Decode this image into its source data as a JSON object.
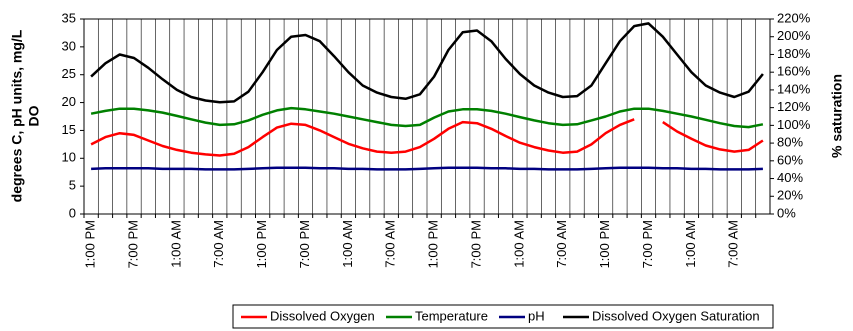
{
  "chart_data": {
    "type": "line",
    "y_label": [
      "degrees C, pH units, mg/L",
      "DO"
    ],
    "y2_label": "% saturation",
    "categories": [
      "1:00 PM",
      null,
      null,
      "7:00 PM",
      null,
      null,
      "1:00 AM",
      null,
      null,
      "7:00 AM",
      null,
      null,
      "1:00 PM",
      null,
      null,
      "7:00 PM",
      null,
      null,
      "1:00 AM",
      null,
      null,
      "7:00 AM",
      null,
      null,
      "1:00 PM",
      null,
      null,
      "7:00 PM",
      null,
      null,
      "1:00 AM",
      null,
      null,
      "7:00 AM",
      null,
      null,
      "1:00 PM",
      null,
      null,
      "7:00 PM",
      null,
      null,
      "1:00 AM",
      null,
      null,
      "7:00 AM",
      null,
      null
    ],
    "ylim": [
      0,
      35
    ],
    "yticks": [
      0,
      5,
      10,
      15,
      20,
      25,
      30,
      35
    ],
    "y2lim": [
      0,
      220
    ],
    "y2ticks": [
      {
        "value": 0,
        "label": "0%"
      },
      {
        "value": 20,
        "label": "20%"
      },
      {
        "value": 40,
        "label": "40%"
      },
      {
        "value": 60,
        "label": "60%"
      },
      {
        "value": 80,
        "label": "80%"
      },
      {
        "value": 100,
        "label": "100%"
      },
      {
        "value": 120,
        "label": "120%"
      },
      {
        "value": 140,
        "label": "140%"
      },
      {
        "value": 160,
        "label": "160%"
      },
      {
        "value": 180,
        "label": "180%"
      },
      {
        "value": 200,
        "label": "200%"
      },
      {
        "value": 220,
        "label": "220%"
      }
    ],
    "x_grid": true,
    "series": [
      {
        "name": "Dissolved Oxygen",
        "color": "#ff0000",
        "values": [
          12.5,
          13.8,
          14.5,
          14.2,
          13.2,
          12.2,
          11.5,
          11,
          10.7,
          10.5,
          10.8,
          12,
          13.8,
          15.5,
          16.2,
          16,
          15,
          13.8,
          12.6,
          11.8,
          11.2,
          11,
          11.2,
          12,
          13.5,
          15.3,
          16.5,
          16.3,
          15.3,
          14,
          12.8,
          12,
          11.4,
          11,
          11.2,
          12.5,
          14.5,
          16,
          17,
          null,
          16.5,
          14.8,
          13.5,
          12.3,
          11.6,
          11.2,
          11.5,
          13.2
        ]
      },
      {
        "name": "Temperature",
        "color": "#008000",
        "values": [
          18,
          18.5,
          18.9,
          18.9,
          18.6,
          18.2,
          17.6,
          17,
          16.4,
          16,
          16.1,
          16.8,
          17.8,
          18.6,
          19,
          18.8,
          18.4,
          18,
          17.5,
          17,
          16.5,
          16,
          15.8,
          16,
          17.3,
          18.4,
          18.8,
          18.8,
          18.5,
          18,
          17.4,
          16.8,
          16.3,
          16,
          16.1,
          16.8,
          17.5,
          18.4,
          18.9,
          18.9,
          18.5,
          18,
          17.5,
          16.9,
          16.3,
          15.8,
          15.6,
          16.1
        ]
      },
      {
        "name": "pH",
        "color": "#000080",
        "values": [
          8.1,
          8.2,
          8.2,
          8.2,
          8.2,
          8.1,
          8.1,
          8.1,
          8,
          8,
          8,
          8.1,
          8.2,
          8.3,
          8.3,
          8.3,
          8.2,
          8.2,
          8.1,
          8.1,
          8,
          8,
          8,
          8.1,
          8.2,
          8.3,
          8.3,
          8.3,
          8.2,
          8.2,
          8.1,
          8.1,
          8,
          8,
          8,
          8.1,
          8.2,
          8.3,
          8.3,
          8.3,
          8.2,
          8.2,
          8.1,
          8.1,
          8,
          8,
          8,
          8.1
        ]
      },
      {
        "name": "Dissolved Oxygen Saturation",
        "color": "#000000",
        "axis": "y2",
        "values": [
          155,
          170,
          180,
          176,
          165,
          152,
          140,
          132,
          128,
          126,
          127,
          138,
          160,
          185,
          200,
          202,
          195,
          178,
          160,
          145,
          137,
          132,
          130,
          135,
          155,
          185,
          205,
          207,
          195,
          175,
          158,
          145,
          137,
          132,
          133,
          145,
          170,
          195,
          212,
          215,
          200,
          180,
          160,
          145,
          137,
          132,
          138,
          158
        ]
      }
    ]
  }
}
